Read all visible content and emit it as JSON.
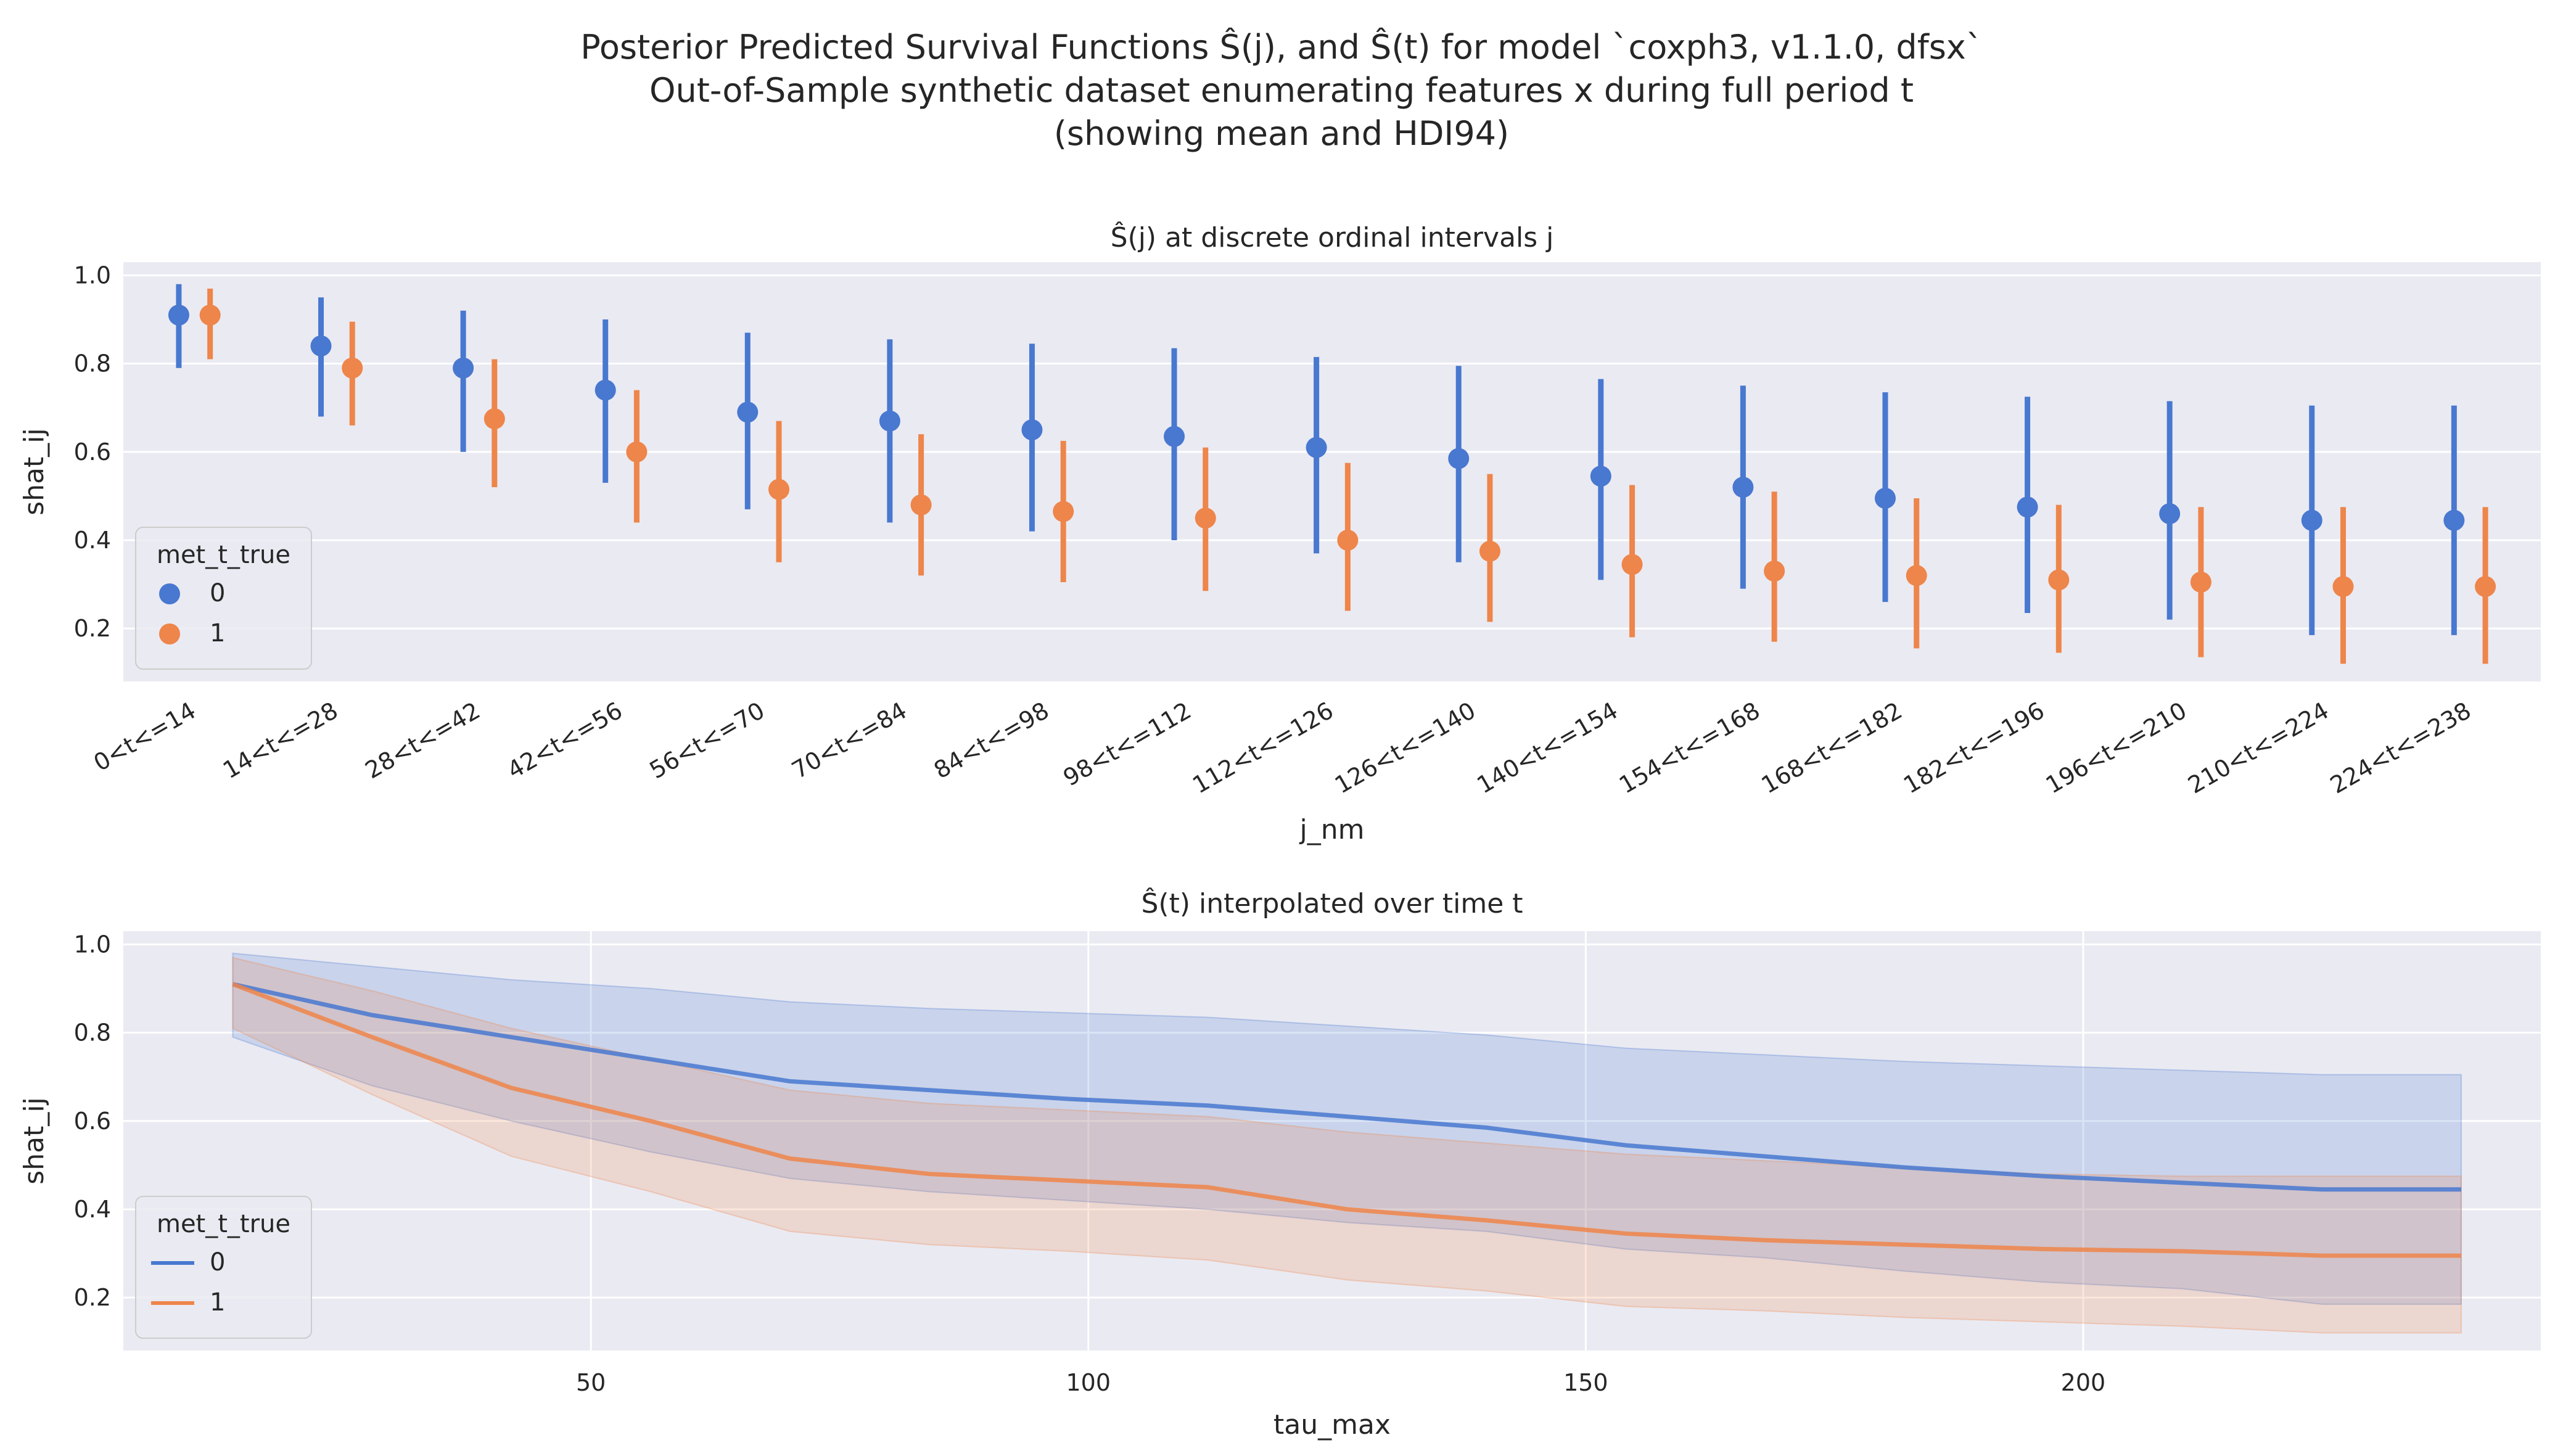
{
  "figure": {
    "title_line1": "Posterior Predicted Survival Functions Ŝ(j), and Ŝ(t) for model `coxph3, v1.1.0, dfsx`",
    "title_line2": "Out-of-Sample synthetic dataset enumerating features x during full period t",
    "title_line3": "(showing mean and HDI94)"
  },
  "colors": {
    "series0": "#4878d0",
    "series1": "#ee854a",
    "plot_bg": "#eaeaf2",
    "grid": "#ffffff"
  },
  "chart_data": [
    {
      "type": "scatter",
      "subtype": "pointplot-with-intervals",
      "title": "Ŝ(j) at discrete ordinal intervals j",
      "xlabel": "j_nm",
      "ylabel": "shat_ij",
      "ylim": [
        0.08,
        1.03
      ],
      "yticks": [
        0.2,
        0.4,
        0.6,
        0.8,
        1.0
      ],
      "yticklabels": [
        "0.2",
        "0.4",
        "0.6",
        "0.8",
        "1.0"
      ],
      "grid": true,
      "legend": {
        "title": "met_t_true",
        "placement": "lower-left",
        "labels": [
          "0",
          "1"
        ]
      },
      "categories": [
        "0<t<=14",
        "14<t<=28",
        "28<t<=42",
        "42<t<=56",
        "56<t<=70",
        "70<t<=84",
        "84<t<=98",
        "98<t<=112",
        "112<t<=126",
        "126<t<=140",
        "140<t<=154",
        "154<t<=168",
        "168<t<=182",
        "182<t<=196",
        "196<t<=210",
        "210<t<=224",
        "224<t<=238"
      ],
      "series": [
        {
          "name": "0",
          "mean": [
            0.91,
            0.84,
            0.79,
            0.74,
            0.69,
            0.67,
            0.65,
            0.635,
            0.61,
            0.585,
            0.545,
            0.52,
            0.495,
            0.475,
            0.46,
            0.445,
            0.445
          ],
          "lower": [
            0.79,
            0.68,
            0.6,
            0.53,
            0.47,
            0.44,
            0.42,
            0.4,
            0.37,
            0.35,
            0.31,
            0.29,
            0.26,
            0.235,
            0.22,
            0.185,
            0.185
          ],
          "upper": [
            0.98,
            0.95,
            0.92,
            0.9,
            0.87,
            0.855,
            0.845,
            0.835,
            0.815,
            0.795,
            0.765,
            0.75,
            0.735,
            0.725,
            0.715,
            0.705,
            0.705
          ]
        },
        {
          "name": "1",
          "mean": [
            0.91,
            0.79,
            0.675,
            0.6,
            0.515,
            0.48,
            0.465,
            0.45,
            0.4,
            0.375,
            0.345,
            0.33,
            0.32,
            0.31,
            0.305,
            0.295,
            0.295
          ],
          "lower": [
            0.81,
            0.66,
            0.52,
            0.44,
            0.35,
            0.32,
            0.305,
            0.285,
            0.24,
            0.215,
            0.18,
            0.17,
            0.155,
            0.145,
            0.135,
            0.12,
            0.12
          ],
          "upper": [
            0.97,
            0.895,
            0.81,
            0.74,
            0.67,
            0.64,
            0.625,
            0.61,
            0.575,
            0.55,
            0.525,
            0.51,
            0.495,
            0.48,
            0.475,
            0.475,
            0.475
          ]
        }
      ]
    },
    {
      "type": "line",
      "subtype": "line-with-band",
      "title": "Ŝ(t) interpolated over time t",
      "xlabel": "tau_max",
      "ylabel": "shat_ij",
      "xlim": [
        3,
        246
      ],
      "ylim": [
        0.08,
        1.03
      ],
      "xticks": [
        50,
        100,
        150,
        200
      ],
      "xticklabels": [
        "50",
        "100",
        "150",
        "200"
      ],
      "yticks": [
        0.2,
        0.4,
        0.6,
        0.8,
        1.0
      ],
      "yticklabels": [
        "0.2",
        "0.4",
        "0.6",
        "0.8",
        "1.0"
      ],
      "grid": true,
      "legend": {
        "title": "met_t_true",
        "placement": "lower-left",
        "labels": [
          "0",
          "1"
        ]
      },
      "x": [
        14,
        28,
        42,
        56,
        70,
        84,
        98,
        112,
        126,
        140,
        154,
        168,
        182,
        196,
        210,
        224,
        238
      ],
      "series": [
        {
          "name": "0",
          "mean": [
            0.91,
            0.84,
            0.79,
            0.74,
            0.69,
            0.67,
            0.65,
            0.635,
            0.61,
            0.585,
            0.545,
            0.52,
            0.495,
            0.475,
            0.46,
            0.445,
            0.445
          ],
          "lower": [
            0.79,
            0.68,
            0.6,
            0.53,
            0.47,
            0.44,
            0.42,
            0.4,
            0.37,
            0.35,
            0.31,
            0.29,
            0.26,
            0.235,
            0.22,
            0.185,
            0.185
          ],
          "upper": [
            0.98,
            0.95,
            0.92,
            0.9,
            0.87,
            0.855,
            0.845,
            0.835,
            0.815,
            0.795,
            0.765,
            0.75,
            0.735,
            0.725,
            0.715,
            0.705,
            0.705
          ]
        },
        {
          "name": "1",
          "mean": [
            0.91,
            0.79,
            0.675,
            0.6,
            0.515,
            0.48,
            0.465,
            0.45,
            0.4,
            0.375,
            0.345,
            0.33,
            0.32,
            0.31,
            0.305,
            0.295,
            0.295
          ],
          "lower": [
            0.81,
            0.66,
            0.52,
            0.44,
            0.35,
            0.32,
            0.305,
            0.285,
            0.24,
            0.215,
            0.18,
            0.17,
            0.155,
            0.145,
            0.135,
            0.12,
            0.12
          ],
          "upper": [
            0.97,
            0.895,
            0.81,
            0.74,
            0.67,
            0.64,
            0.625,
            0.61,
            0.575,
            0.55,
            0.525,
            0.51,
            0.495,
            0.48,
            0.475,
            0.475,
            0.475
          ]
        }
      ]
    }
  ]
}
